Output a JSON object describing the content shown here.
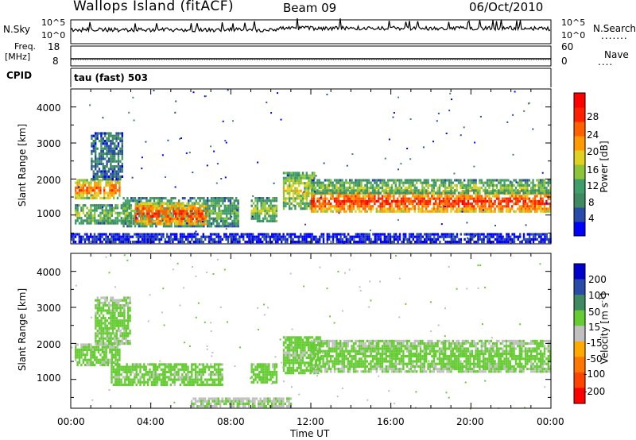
{
  "header": {
    "title": "Wallops Island (fitACF)",
    "beam": "Beam 09",
    "date": "06/Oct/2010"
  },
  "top_panels": {
    "nsky_label": "N.Sky",
    "nsearch_label": "N.Search",
    "nsky_ticks": [
      "10^5",
      "10^0"
    ],
    "nsearch_ticks": [
      "10^5",
      "10^0"
    ],
    "freq_label_1": "Freq.",
    "freq_label_2": "[MHz]",
    "freq_ticks": [
      "18",
      "8"
    ],
    "nave_label": "Nave",
    "nave_ticks": [
      "60",
      "0"
    ],
    "cpid_label": "CPID",
    "cpid_value": "tau (fast) 503"
  },
  "colors": {
    "power": [
      "#0000ff",
      "#2a4ca8",
      "#3f8a60",
      "#3f9e6a",
      "#8ec43a",
      "#e0d020",
      "#ff9a00",
      "#ff6000",
      "#ff2000",
      "#ff0000"
    ],
    "velocity": [
      "#0000cc",
      "#2a4ca8",
      "#3f8a60",
      "#66cc33",
      "#c0c0c0",
      "#ffaa00",
      "#ff7700",
      "#ff4400",
      "#ff0000"
    ]
  },
  "chart_data": [
    {
      "type": "heatmap",
      "quantity": "Power",
      "ylabel": "Slant Range [km]",
      "ylim": [
        200,
        4500
      ],
      "yticks": [
        "1000",
        "2000",
        "3000",
        "4000"
      ],
      "xlim_hours": [
        0,
        24
      ],
      "colorbar_label": "Power [dB]",
      "colorbar_ticks": [
        "4",
        "8",
        "12",
        "16",
        "20",
        "24",
        "28"
      ],
      "colorbar_range": [
        0,
        32
      ],
      "regions": [
        {
          "t0": 0.2,
          "t1": 2.4,
          "r0": 1500,
          "r1": 2000,
          "level": 0.75
        },
        {
          "t0": 0.2,
          "t1": 3.0,
          "r0": 800,
          "r1": 1300,
          "level": 0.45
        },
        {
          "t0": 1.0,
          "t1": 2.6,
          "r0": 2000,
          "r1": 3300,
          "level": 0.25
        },
        {
          "t0": 2.6,
          "t1": 8.4,
          "r0": 700,
          "r1": 1500,
          "level": 0.4
        },
        {
          "t0": 3.2,
          "t1": 6.8,
          "r0": 750,
          "r1": 1350,
          "level": 0.85
        },
        {
          "t0": 9.0,
          "t1": 10.3,
          "r0": 800,
          "r1": 1500,
          "level": 0.45
        },
        {
          "t0": 10.6,
          "t1": 12.2,
          "r0": 1200,
          "r1": 2200,
          "level": 0.55
        },
        {
          "t0": 12.0,
          "t1": 24.0,
          "r0": 1100,
          "r1": 1700,
          "level": 0.85
        },
        {
          "t0": 12.0,
          "t1": 24.0,
          "r0": 1600,
          "r1": 2000,
          "level": 0.45
        },
        {
          "t0": 0.0,
          "t1": 24.0,
          "r0": 250,
          "r1": 500,
          "level": 0.1
        }
      ]
    },
    {
      "type": "heatmap",
      "quantity": "Velocity",
      "ylabel": "Slant Range [km]",
      "xlabel": "Time UT",
      "ylim": [
        200,
        4500
      ],
      "yticks": [
        "1000",
        "2000",
        "3000",
        "4000"
      ],
      "xlim_hours": [
        0,
        24
      ],
      "xticks": [
        "00:00",
        "04:00",
        "08:00",
        "12:00",
        "16:00",
        "20:00",
        "00:00"
      ],
      "colorbar_label": "Velocity [m s^-1]",
      "colorbar_ticks": [
        "200",
        "100",
        "50",
        "15",
        "-15",
        "-50",
        "-100",
        "-200"
      ],
      "regions": [
        {
          "t0": 0.2,
          "t1": 2.4,
          "r0": 1400,
          "r1": 2000,
          "level": 0.5
        },
        {
          "t0": 1.2,
          "t1": 3.0,
          "r0": 2000,
          "r1": 3300,
          "level": 0.5
        },
        {
          "t0": 2.0,
          "t1": 7.6,
          "r0": 850,
          "r1": 1450,
          "level": 0.65
        },
        {
          "t0": 9.0,
          "t1": 10.3,
          "r0": 900,
          "r1": 1450,
          "level": 0.6
        },
        {
          "t0": 10.6,
          "t1": 12.5,
          "r0": 1200,
          "r1": 2200,
          "level": 0.65
        },
        {
          "t0": 12.0,
          "t1": 24.0,
          "r0": 1200,
          "r1": 2100,
          "level": 0.5
        },
        {
          "t0": 6.0,
          "t1": 11.0,
          "r0": 250,
          "r1": 500,
          "level": 0.38
        }
      ]
    }
  ]
}
